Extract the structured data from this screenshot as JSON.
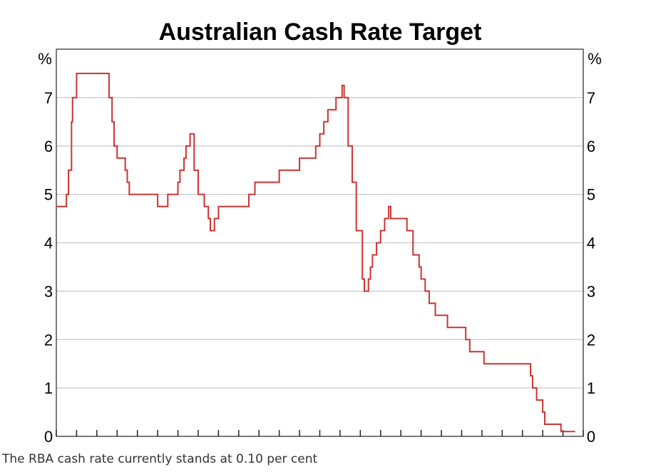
{
  "chart_data": {
    "type": "line",
    "title": "Australian Cash Rate Target",
    "y_unit_left": "%",
    "y_unit_right": "%",
    "ylim": [
      0,
      8
    ],
    "y_ticks": [
      0,
      1,
      2,
      3,
      4,
      5,
      6,
      7
    ],
    "x_tick_count": 27,
    "grid": true,
    "line_color": "#cc3333",
    "series": [
      {
        "x": [
          0,
          0.5,
          0.6,
          0.75,
          0.8,
          1.0,
          2.6,
          2.75,
          2.85,
          3.0,
          3.4,
          3.5,
          3.6,
          3.75,
          5.0,
          5.5,
          6.0,
          6.1,
          6.3,
          6.4,
          6.6,
          6.8,
          7.0,
          7.3,
          7.5,
          7.6,
          7.8,
          8.0,
          8.2,
          8.4,
          8.8,
          9.0,
          9.5,
          9.8,
          10.0,
          11.0,
          11.6,
          12.0,
          12.8,
          13.0,
          13.2,
          13.4,
          13.8,
          14.1,
          14.2,
          14.4,
          14.6,
          14.8,
          15.1,
          15.2,
          15.3,
          15.4,
          15.5,
          15.6,
          15.8,
          16.0,
          16.2,
          16.4,
          16.5,
          17.3,
          17.6,
          17.9,
          18.0,
          18.2,
          18.4,
          18.7,
          19.0,
          19.3,
          20.2,
          20.4,
          21.1,
          21.2,
          21.5,
          23.4,
          23.5,
          23.7,
          24.0,
          24.1,
          24.9,
          25.5,
          25.6
        ],
        "y": [
          4.75,
          5.0,
          5.5,
          6.5,
          7.0,
          7.5,
          7.0,
          6.5,
          6.0,
          5.75,
          5.5,
          5.25,
          5.0,
          5.0,
          4.75,
          5.0,
          5.25,
          5.5,
          5.75,
          6.0,
          6.25,
          5.5,
          5.0,
          4.75,
          4.5,
          4.25,
          4.5,
          4.75,
          4.75,
          4.75,
          4.75,
          4.75,
          5.0,
          5.25,
          5.25,
          5.5,
          5.5,
          5.75,
          6.0,
          6.25,
          6.5,
          6.75,
          7.0,
          7.25,
          7.0,
          6.0,
          5.25,
          4.25,
          3.25,
          3.0,
          3.0,
          3.25,
          3.5,
          3.75,
          4.0,
          4.25,
          4.5,
          4.75,
          4.5,
          4.25,
          3.75,
          3.5,
          3.25,
          3.0,
          2.75,
          2.5,
          2.5,
          2.25,
          2.0,
          1.75,
          1.5,
          1.5,
          1.5,
          1.25,
          1.0,
          0.75,
          0.5,
          0.25,
          0.1,
          0.1,
          0.1
        ]
      }
    ]
  },
  "caption": "The RBA cash rate currently stands at 0.10 per cent"
}
